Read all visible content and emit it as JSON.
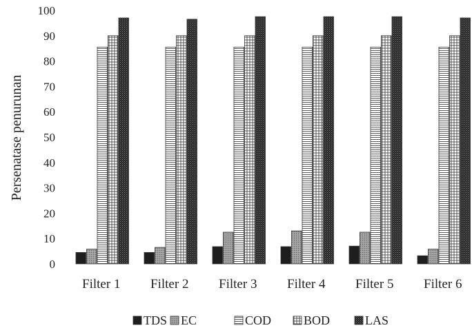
{
  "chart_data": {
    "type": "bar",
    "title": "",
    "xlabel": "",
    "ylabel": "Persenatase penurunan",
    "ylim": [
      0,
      100
    ],
    "yticks": [
      0,
      10,
      20,
      30,
      40,
      50,
      60,
      70,
      80,
      90,
      100
    ],
    "grid": false,
    "legend_position": "bottom",
    "categories": [
      "Filter 1",
      "Filter 2",
      "Filter 3",
      "Filter 4",
      "Filter 5",
      "Filter 6"
    ],
    "series": [
      {
        "name": "TDS",
        "pattern": "solid-dark",
        "values": [
          4.5,
          4.5,
          6.8,
          6.8,
          7.0,
          3.2
        ]
      },
      {
        "name": "EC",
        "pattern": "dotted-gray",
        "values": [
          5.8,
          6.5,
          12.5,
          13.0,
          12.5,
          5.8
        ]
      },
      {
        "name": "COD",
        "pattern": "horizontal-lines",
        "values": [
          85.5,
          85.5,
          85.5,
          85.5,
          85.5,
          85.5
        ]
      },
      {
        "name": "BOD",
        "pattern": "grid",
        "values": [
          90.0,
          90.0,
          90.0,
          90.0,
          90.0,
          90.0
        ]
      },
      {
        "name": "LAS",
        "pattern": "crosshatch-dark",
        "values": [
          97.0,
          96.5,
          97.5,
          97.5,
          97.5,
          97.0
        ]
      }
    ],
    "colors": {
      "bar_stroke": "#333333",
      "text": "#222222"
    }
  }
}
